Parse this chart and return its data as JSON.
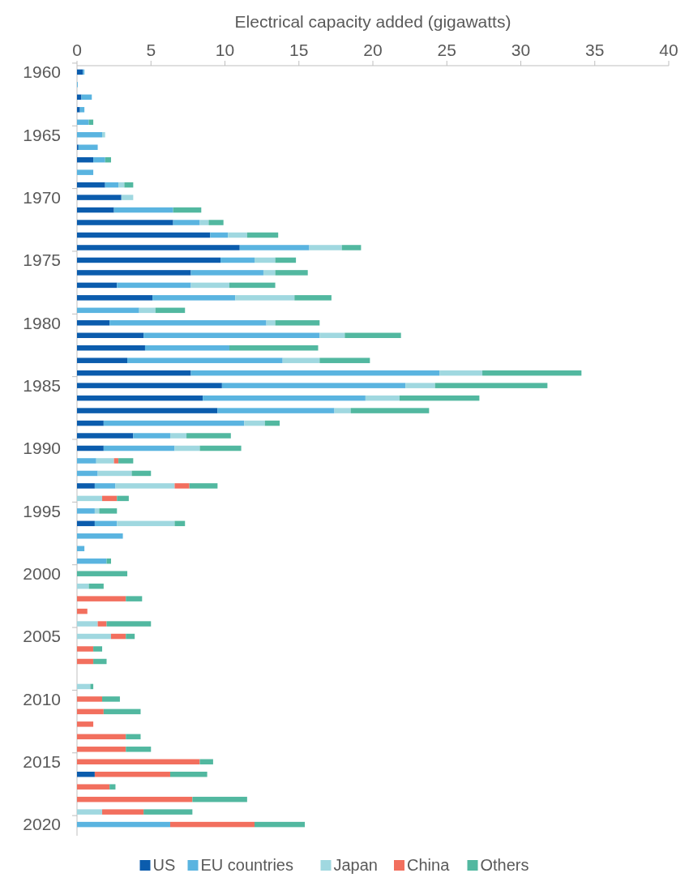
{
  "chart_data": {
    "type": "bar",
    "orientation": "horizontal",
    "stacked": true,
    "xlabel": "Electrical capacity added (gigawatts)",
    "categories": [
      "1960",
      null,
      null,
      null,
      null,
      "1965",
      null,
      null,
      null,
      null,
      "1970",
      null,
      null,
      null,
      null,
      "1975",
      null,
      null,
      null,
      null,
      "1980",
      null,
      null,
      null,
      null,
      "1985",
      null,
      null,
      null,
      null,
      "1990",
      null,
      null,
      null,
      null,
      "1995",
      null,
      null,
      null,
      null,
      "2000",
      null,
      null,
      null,
      null,
      "2005",
      null,
      null,
      null,
      null,
      "2010",
      null,
      null,
      null,
      null,
      "2015",
      null,
      null,
      null,
      null,
      "2020"
    ],
    "xlim": [
      0,
      40
    ],
    "xticks": [
      0,
      5,
      10,
      15,
      20,
      25,
      30,
      35,
      40
    ],
    "legend": "bottom",
    "series": [
      {
        "name": "US",
        "color": "#0b5cad",
        "values": [
          0.4,
          0,
          0.3,
          0.2,
          0,
          0,
          0.1,
          1.1,
          0,
          1.9,
          3.0,
          2.5,
          6.5,
          9.0,
          11.0,
          9.7,
          7.7,
          2.7,
          5.1,
          0,
          2.2,
          4.5,
          4.6,
          3.4,
          7.7,
          9.8,
          8.5,
          9.5,
          1.8,
          3.8,
          1.8,
          0,
          0,
          1.2,
          0,
          0,
          1.2,
          0,
          0,
          0,
          0,
          0,
          0,
          0,
          0,
          0,
          0,
          0,
          0,
          0,
          0,
          0,
          0,
          0,
          0,
          0,
          1.2,
          0,
          0,
          0,
          0
        ]
      },
      {
        "name": "EU countries",
        "color": "#5ab4e0",
        "values": [
          0.1,
          0.05,
          0.7,
          0.3,
          0.8,
          1.7,
          1.3,
          0.8,
          1.1,
          0.9,
          0,
          4.0,
          1.8,
          1.2,
          4.7,
          2.3,
          4.9,
          5.0,
          5.6,
          4.2,
          10.6,
          11.9,
          5.7,
          10.5,
          16.8,
          12.4,
          11.0,
          7.9,
          9.5,
          2.5,
          4.8,
          1.3,
          1.4,
          1.4,
          0,
          1.2,
          1.5,
          3.1,
          0.5,
          2.0,
          0,
          0,
          0,
          0,
          0,
          0,
          0,
          0,
          0,
          0,
          0,
          0,
          0,
          0,
          0,
          0,
          0,
          0,
          0,
          0,
          6.3
        ]
      },
      {
        "name": "Japan",
        "color": "#a0d8e0",
        "values": [
          0,
          0,
          0,
          0,
          0,
          0.2,
          0,
          0,
          0,
          0.4,
          0.8,
          0,
          0.6,
          1.3,
          2.2,
          1.4,
          0.8,
          2.6,
          4.0,
          1.1,
          0.6,
          1.7,
          0,
          2.5,
          2.9,
          2.0,
          2.3,
          1.1,
          1.4,
          1.1,
          1.7,
          1.2,
          2.3,
          4.0,
          1.7,
          0.3,
          3.9,
          0,
          0,
          0,
          0,
          0.8,
          0,
          0,
          1.4,
          2.3,
          0,
          0,
          0,
          0.9,
          0,
          0,
          0,
          0,
          0,
          0,
          0,
          0,
          0,
          1.7,
          0
        ]
      },
      {
        "name": "China",
        "color": "#f26f5e",
        "values": [
          0,
          0,
          0,
          0,
          0,
          0,
          0,
          0,
          0,
          0,
          0,
          0,
          0,
          0,
          0,
          0,
          0,
          0,
          0,
          0,
          0,
          0,
          0,
          0,
          0,
          0,
          0,
          0,
          0,
          0,
          0,
          0.3,
          0,
          1.0,
          1.0,
          0,
          0,
          0,
          0,
          0,
          0,
          0,
          3.3,
          0.7,
          0.6,
          1.0,
          1.1,
          1.1,
          0,
          0,
          1.7,
          1.8,
          1.1,
          3.3,
          3.3,
          8.3,
          5.1,
          2.2,
          7.8,
          2.8,
          5.7
        ]
      },
      {
        "name": "Others",
        "color": "#52b8a0",
        "values": [
          0,
          0,
          0,
          0,
          0.3,
          0,
          0,
          0.4,
          0,
          0.6,
          0,
          1.9,
          1.0,
          2.1,
          1.3,
          1.4,
          2.2,
          3.1,
          2.5,
          2.0,
          3.0,
          3.8,
          6.0,
          3.4,
          6.7,
          7.6,
          5.4,
          5.3,
          1.0,
          3.0,
          2.8,
          1.0,
          1.3,
          1.9,
          0.8,
          1.2,
          0.7,
          0,
          0,
          0.3,
          3.4,
          1.0,
          1.1,
          0,
          3.0,
          0.6,
          0.6,
          0.9,
          0,
          0.2,
          1.2,
          2.5,
          0,
          1.0,
          1.7,
          0.9,
          2.5,
          0.4,
          3.7,
          3.3,
          3.4
        ]
      }
    ]
  }
}
